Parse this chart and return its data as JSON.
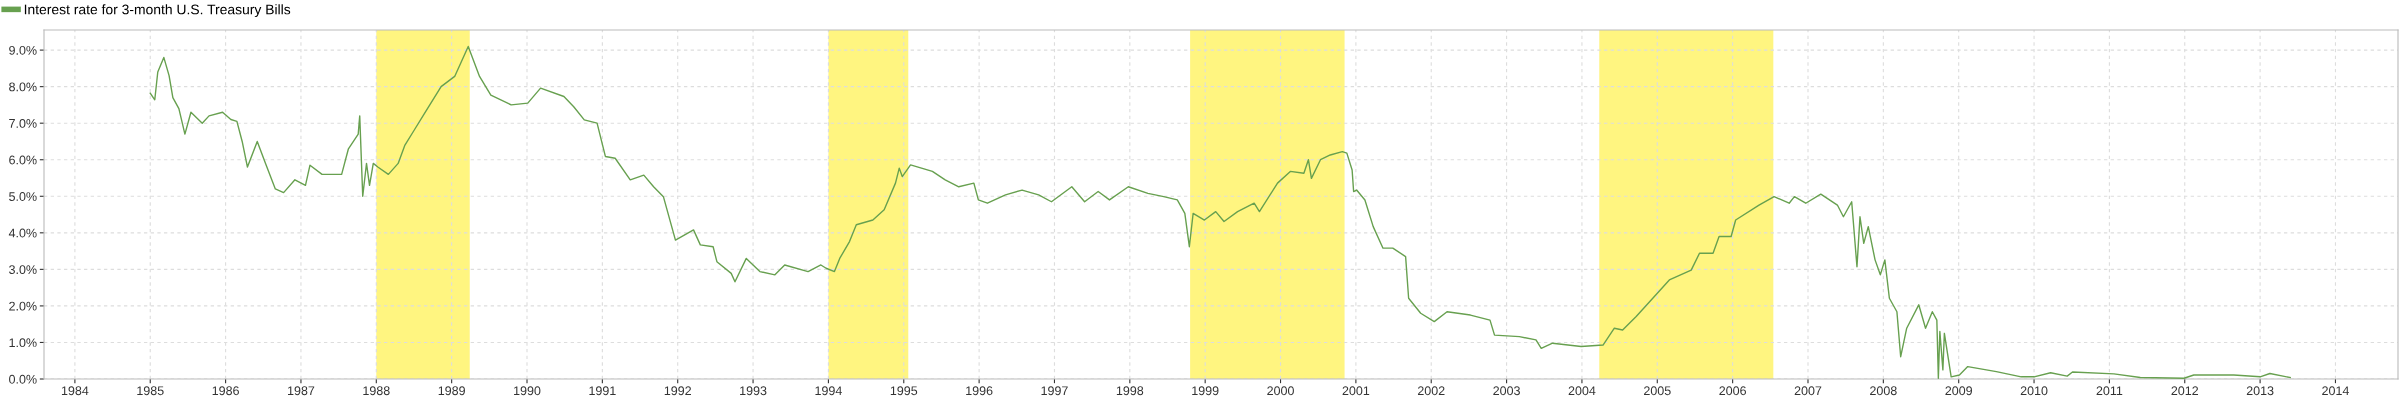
{
  "chart_data": {
    "type": "line",
    "x": [
      1985.0,
      1985.06,
      1985.1,
      1985.18,
      1985.25,
      1985.3,
      1985.38,
      1985.46,
      1985.54,
      1985.69,
      1985.78,
      1985.96,
      1986.07,
      1986.15,
      1986.22,
      1986.29,
      1986.42,
      1986.53,
      1986.66,
      1986.77,
      1986.92,
      1987.06,
      1987.12,
      1987.28,
      1987.54,
      1987.63,
      1987.76,
      1987.78,
      1987.82,
      1987.87,
      1987.91,
      1987.96,
      1988.02,
      1988.16,
      1988.29,
      1988.38,
      1988.5,
      1988.64,
      1988.86,
      1989.04,
      1989.22,
      1989.37,
      1989.52,
      1989.79,
      1990.01,
      1990.18,
      1990.49,
      1990.62,
      1990.76,
      1990.93,
      1991.04,
      1991.17,
      1991.37,
      1991.55,
      1991.68,
      1991.81,
      1991.97,
      1992.21,
      1992.3,
      1992.47,
      1992.52,
      1992.71,
      1992.76,
      1992.91,
      1993.09,
      1993.29,
      1993.42,
      1993.73,
      1993.9,
      1993.97,
      1994.08,
      1994.15,
      1994.28,
      1994.37,
      1994.59,
      1994.74,
      1994.89,
      1994.94,
      1994.98,
      1995.09,
      1995.38,
      1995.55,
      1995.73,
      1995.93,
      1995.99,
      1996.11,
      1996.35,
      1996.57,
      1996.79,
      1996.96,
      1997.23,
      1997.4,
      1997.58,
      1997.73,
      1997.98,
      1998.24,
      1998.45,
      1998.63,
      1998.73,
      1998.79,
      1998.84,
      1998.99,
      1999.14,
      1999.25,
      1999.43,
      1999.65,
      1999.72,
      1999.96,
      2000.13,
      2000.31,
      2000.37,
      2000.41,
      2000.53,
      2000.66,
      2000.82,
      2000.88,
      2000.95,
      2000.97,
      2001.01,
      2001.12,
      2001.23,
      2001.36,
      2001.49,
      2001.66,
      2001.7,
      2001.86,
      2002.04,
      2002.21,
      2002.52,
      2002.78,
      2002.84,
      2003.17,
      2003.39,
      2003.46,
      2003.61,
      2003.99,
      2004.28,
      2004.43,
      2004.54,
      2004.72,
      2004.94,
      2005.16,
      2005.45,
      2005.56,
      2005.74,
      2005.82,
      2005.98,
      2006.04,
      2006.35,
      2006.55,
      2006.75,
      2006.82,
      2006.97,
      2007.17,
      2007.39,
      2007.47,
      2007.58,
      2007.65,
      2007.69,
      2007.74,
      2007.8,
      2007.89,
      2007.96,
      2008.02,
      2008.08,
      2008.18,
      2008.23,
      2008.31,
      2008.47,
      2008.56,
      2008.65,
      2008.71,
      2008.73,
      2008.75,
      2008.79,
      2008.81,
      2008.9,
      2009.01,
      2009.12,
      2009.5,
      2009.83,
      2010.0,
      2010.22,
      2010.44,
      2010.51,
      2011.06,
      2011.41,
      2011.99,
      2012.12,
      2012.65,
      2013.0,
      2013.13,
      2013.4
    ],
    "series": [
      {
        "name": "Interest rate for 3-month U.S. Treasury Bills",
        "color": "#67a04f",
        "values": [
          7.82,
          7.64,
          8.4,
          8.8,
          8.3,
          7.7,
          7.4,
          6.7,
          7.3,
          7.0,
          7.2,
          7.3,
          7.1,
          7.05,
          6.5,
          5.8,
          6.5,
          5.9,
          5.2,
          5.1,
          5.45,
          5.3,
          5.85,
          5.6,
          5.6,
          6.3,
          6.7,
          7.2,
          5.0,
          5.9,
          5.3,
          5.9,
          5.8,
          5.6,
          5.9,
          6.4,
          6.8,
          7.27,
          8.0,
          8.28,
          9.1,
          8.28,
          7.77,
          7.5,
          7.55,
          7.96,
          7.73,
          7.45,
          7.09,
          7.0,
          6.09,
          6.04,
          5.45,
          5.58,
          5.26,
          4.99,
          3.8,
          4.08,
          3.67,
          3.62,
          3.21,
          2.89,
          2.66,
          3.3,
          2.94,
          2.85,
          3.12,
          2.94,
          3.12,
          3.03,
          2.94,
          3.3,
          3.76,
          4.22,
          4.35,
          4.63,
          5.36,
          5.77,
          5.54,
          5.86,
          5.68,
          5.45,
          5.26,
          5.36,
          4.9,
          4.81,
          5.04,
          5.17,
          5.04,
          4.85,
          5.26,
          4.85,
          5.13,
          4.9,
          5.26,
          5.08,
          4.99,
          4.9,
          4.53,
          3.62,
          4.53,
          4.35,
          4.58,
          4.31,
          4.58,
          4.81,
          4.58,
          5.36,
          5.68,
          5.63,
          6.0,
          5.49,
          6.0,
          6.13,
          6.22,
          6.18,
          5.72,
          5.13,
          5.17,
          4.9,
          4.17,
          3.58,
          3.58,
          3.35,
          2.21,
          1.8,
          1.57,
          1.84,
          1.75,
          1.61,
          1.2,
          1.16,
          1.07,
          0.84,
          0.98,
          0.89,
          0.93,
          1.39,
          1.34,
          1.71,
          2.21,
          2.71,
          2.98,
          3.44,
          3.44,
          3.9,
          3.9,
          4.35,
          4.76,
          4.99,
          4.81,
          4.99,
          4.81,
          5.06,
          4.76,
          4.44,
          4.85,
          3.07,
          4.44,
          3.71,
          4.17,
          3.26,
          2.85,
          3.26,
          2.21,
          1.84,
          0.61,
          1.39,
          2.03,
          1.39,
          1.84,
          1.61,
          0.02,
          1.3,
          0.25,
          1.25,
          0.06,
          0.11,
          0.34,
          0.2,
          0.06,
          0.06,
          0.17,
          0.08,
          0.19,
          0.14,
          0.04,
          0.02,
          0.11,
          0.11,
          0.06,
          0.15,
          0.04
        ]
      }
    ],
    "xlim": [
      1983.59,
      2014.83
    ],
    "xticks": [
      1984,
      1985,
      1986,
      1987,
      1988,
      1989,
      1990,
      1991,
      1992,
      1993,
      1994,
      1995,
      1996,
      1997,
      1998,
      1999,
      2000,
      2001,
      2002,
      2003,
      2004,
      2005,
      2006,
      2007,
      2008,
      2009,
      2010,
      2011,
      2012,
      2013,
      2014
    ],
    "ylim": [
      0,
      9.55
    ],
    "yticks": [
      {
        "value": 0,
        "label": "0.0%"
      },
      {
        "value": 1,
        "label": "1.0%"
      },
      {
        "value": 2,
        "label": "2.0%"
      },
      {
        "value": 3,
        "label": "3.0%"
      },
      {
        "value": 4,
        "label": "4.0%"
      },
      {
        "value": 5,
        "label": "5.0%"
      },
      {
        "value": 6,
        "label": "6.0%"
      },
      {
        "value": 7,
        "label": "7.0%"
      },
      {
        "value": 8,
        "label": "8.0%"
      },
      {
        "value": 9,
        "label": "9.0%"
      }
    ],
    "bands": [
      {
        "axis": "x",
        "from": 1988.0,
        "to": 1989.24,
        "color": "#fff580"
      },
      {
        "axis": "x",
        "from": 1994.0,
        "to": 1995.06,
        "color": "#fff580"
      },
      {
        "axis": "x",
        "from": 1998.8,
        "to": 2000.85,
        "color": "#fff580"
      },
      {
        "axis": "x",
        "from": 2004.23,
        "to": 2006.54,
        "color": "#fff580"
      }
    ],
    "grid": true,
    "legend": "top left",
    "line_style": "solid",
    "marker": "none"
  }
}
